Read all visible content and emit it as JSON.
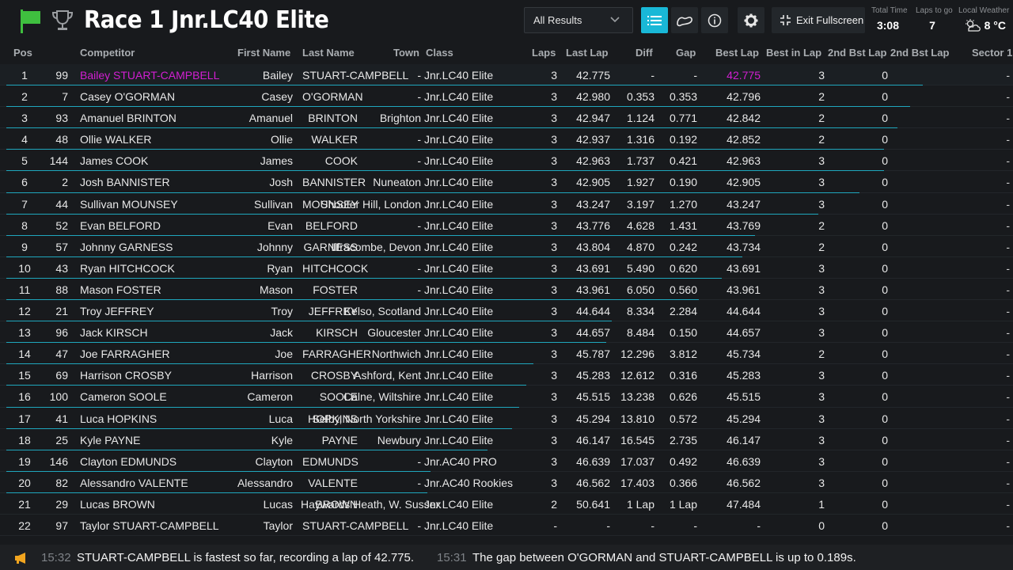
{
  "header": {
    "title": "Race 1 Jnr.LC40 Elite",
    "filter_value": "All Results",
    "exit_label": "Exit Fullscreen",
    "total_time_label": "Total Time",
    "total_time": "3:08",
    "laps_to_go_label": "Laps to go",
    "laps_to_go": "7",
    "weather_label": "Local Weather",
    "weather_temp": "8 °C",
    "accent_color": "#19b8d7",
    "flag_color": "#3fbf3f"
  },
  "columns": {
    "pos": "Pos",
    "competitor": "Competitor",
    "first": "First Name",
    "last": "Last Name",
    "town": "Town",
    "class": "Class",
    "laps": "Laps",
    "last_lap": "Last Lap",
    "diff": "Diff",
    "gap": "Gap",
    "best_lap": "Best Lap",
    "best_in_lap": "Best in Lap",
    "second_best_lap": "2nd Bst Lap",
    "second_in_lap": "2nd Bst Lap",
    "sector": "Sector 1"
  },
  "rows": [
    {
      "pos": "1",
      "num": "99",
      "comp": "Bailey STUART-CAMPBELL",
      "first": "Bailey",
      "last": "STUART-CAMPBELL",
      "town": "-",
      "class": "Jnr.LC40 Elite",
      "laps": "3",
      "last_lap": "42.775",
      "diff": "-",
      "gap": "-",
      "best": "42.775",
      "bil": "3",
      "b2": "0",
      "hl": true,
      "bar": 100
    },
    {
      "pos": "2",
      "num": "7",
      "comp": "Casey O'GORMAN",
      "first": "Casey",
      "last": "O'GORMAN",
      "town": "-",
      "class": "Jnr.LC40 Elite",
      "laps": "3",
      "last_lap": "42.980",
      "diff": "0.353",
      "gap": "0.353",
      "best": "42.796",
      "bil": "2",
      "b2": "0",
      "hl": false,
      "bar": 98.6
    },
    {
      "pos": "3",
      "num": "93",
      "comp": "Amanuel BRINTON",
      "first": "Amanuel",
      "last": "BRINTON",
      "town": "Brighton",
      "class": "Jnr.LC40 Elite",
      "laps": "3",
      "last_lap": "42.947",
      "diff": "1.124",
      "gap": "0.771",
      "best": "42.842",
      "bil": "2",
      "b2": "0",
      "hl": false,
      "bar": 97.2
    },
    {
      "pos": "4",
      "num": "48",
      "comp": "Ollie WALKER",
      "first": "Ollie",
      "last": "WALKER",
      "town": "-",
      "class": "Jnr.LC40 Elite",
      "laps": "3",
      "last_lap": "42.937",
      "diff": "1.316",
      "gap": "0.192",
      "best": "42.852",
      "bil": "2",
      "b2": "0",
      "hl": false,
      "bar": 95.8
    },
    {
      "pos": "5",
      "num": "144",
      "comp": "James COOK",
      "first": "James",
      "last": "COOK",
      "town": "-",
      "class": "Jnr.LC40 Elite",
      "laps": "3",
      "last_lap": "42.963",
      "diff": "1.737",
      "gap": "0.421",
      "best": "42.963",
      "bil": "3",
      "b2": "0",
      "hl": false,
      "bar": 95.8
    },
    {
      "pos": "6",
      "num": "2",
      "comp": "Josh BANNISTER",
      "first": "Josh",
      "last": "BANNISTER",
      "town": "Nuneaton",
      "class": "Jnr.LC40 Elite",
      "laps": "3",
      "last_lap": "42.905",
      "diff": "1.927",
      "gap": "0.190",
      "best": "42.905",
      "bil": "3",
      "b2": "0",
      "hl": false,
      "bar": 93.1
    },
    {
      "pos": "7",
      "num": "44",
      "comp": "Sullivan MOUNSEY",
      "first": "Sullivan",
      "last": "MOUNSEY",
      "town": "Shooter Hill, London",
      "class": "Jnr.LC40 Elite",
      "laps": "3",
      "last_lap": "43.247",
      "diff": "3.197",
      "gap": "1.270",
      "best": "43.247",
      "bil": "3",
      "b2": "0",
      "hl": false,
      "bar": 88.6
    },
    {
      "pos": "8",
      "num": "52",
      "comp": "Evan BELFORD",
      "first": "Evan",
      "last": "BELFORD",
      "town": "-",
      "class": "Jnr.LC40 Elite",
      "laps": "3",
      "last_lap": "43.776",
      "diff": "4.628",
      "gap": "1.431",
      "best": "43.769",
      "bil": "2",
      "b2": "0",
      "hl": false,
      "bar": 81.7
    },
    {
      "pos": "9",
      "num": "57",
      "comp": "Johnny GARNESS",
      "first": "Johnny",
      "last": "GARNESS",
      "town": "Ilfracombe, Devon",
      "class": "Jnr.LC40 Elite",
      "laps": "3",
      "last_lap": "43.804",
      "diff": "4.870",
      "gap": "0.242",
      "best": "43.734",
      "bil": "2",
      "b2": "0",
      "hl": false,
      "bar": 80.3
    },
    {
      "pos": "10",
      "num": "43",
      "comp": "Ryan HITCHCOCK",
      "first": "Ryan",
      "last": "HITCHCOCK",
      "town": "-",
      "class": "Jnr.LC40 Elite",
      "laps": "3",
      "last_lap": "43.691",
      "diff": "5.490",
      "gap": "0.620",
      "best": "43.691",
      "bil": "3",
      "b2": "0",
      "hl": false,
      "bar": 78.1
    },
    {
      "pos": "11",
      "num": "88",
      "comp": "Mason FOSTER",
      "first": "Mason",
      "last": "FOSTER",
      "town": "-",
      "class": "Jnr.LC40 Elite",
      "laps": "3",
      "last_lap": "43.961",
      "diff": "6.050",
      "gap": "0.560",
      "best": "43.961",
      "bil": "3",
      "b2": "0",
      "hl": false,
      "bar": 75.6
    },
    {
      "pos": "12",
      "num": "21",
      "comp": "Troy JEFFREY",
      "first": "Troy",
      "last": "JEFFREY",
      "town": "Kelso, Scotland",
      "class": "Jnr.LC40 Elite",
      "laps": "3",
      "last_lap": "44.644",
      "diff": "8.334",
      "gap": "2.284",
      "best": "44.644",
      "bil": "3",
      "b2": "0",
      "hl": false,
      "bar": 66.1
    },
    {
      "pos": "13",
      "num": "96",
      "comp": "Jack KIRSCH",
      "first": "Jack",
      "last": "KIRSCH",
      "town": "Gloucester",
      "class": "Jnr.LC40 Elite",
      "laps": "3",
      "last_lap": "44.657",
      "diff": "8.484",
      "gap": "0.150",
      "best": "44.657",
      "bil": "3",
      "b2": "0",
      "hl": false,
      "bar": 65.5
    },
    {
      "pos": "14",
      "num": "47",
      "comp": "Joe FARRAGHER",
      "first": "Joe",
      "last": "FARRAGHER",
      "town": "Northwich",
      "class": "Jnr.LC40 Elite",
      "laps": "3",
      "last_lap": "45.787",
      "diff": "12.296",
      "gap": "3.812",
      "best": "45.734",
      "bil": "2",
      "b2": "0",
      "hl": false,
      "bar": 57.5
    },
    {
      "pos": "15",
      "num": "69",
      "comp": "Harrison CROSBY",
      "first": "Harrison",
      "last": "CROSBY",
      "town": "Ashford, Kent",
      "class": "Jnr.LC40 Elite",
      "laps": "3",
      "last_lap": "45.283",
      "diff": "12.612",
      "gap": "0.316",
      "best": "45.283",
      "bil": "3",
      "b2": "0",
      "hl": false,
      "bar": 56.7
    },
    {
      "pos": "16",
      "num": "100",
      "comp": "Cameron SOOLE",
      "first": "Cameron",
      "last": "SOOLE",
      "town": "Calne, Wiltshire",
      "class": "Jnr.LC40 Elite",
      "laps": "3",
      "last_lap": "45.515",
      "diff": "13.238",
      "gap": "0.626",
      "best": "45.515",
      "bil": "3",
      "b2": "0",
      "hl": false,
      "bar": 56.0
    },
    {
      "pos": "17",
      "num": "41",
      "comp": "Luca HOPKINS",
      "first": "Luca",
      "last": "HOPKINS",
      "town": "Selby, North Yorkshire",
      "class": "Jnr.LC40 Elite",
      "laps": "3",
      "last_lap": "45.294",
      "diff": "13.810",
      "gap": "0.572",
      "best": "45.294",
      "bil": "3",
      "b2": "0",
      "hl": false,
      "bar": 55.2
    },
    {
      "pos": "18",
      "num": "25",
      "comp": "Kyle PAYNE",
      "first": "Kyle",
      "last": "PAYNE",
      "town": "Newbury",
      "class": "Jnr.LC40 Elite",
      "laps": "3",
      "last_lap": "46.147",
      "diff": "16.545",
      "gap": "2.735",
      "best": "46.147",
      "bil": "3",
      "b2": "0",
      "hl": false,
      "bar": 52.5
    },
    {
      "pos": "19",
      "num": "146",
      "comp": "Clayton EDMUNDS",
      "first": "Clayton",
      "last": "EDMUNDS",
      "town": "-",
      "class": "Jnr.AC40 PRO",
      "laps": "3",
      "last_lap": "46.639",
      "diff": "17.037",
      "gap": "0.492",
      "best": "46.639",
      "bil": "3",
      "b2": "0",
      "hl": false,
      "bar": 46.3
    },
    {
      "pos": "20",
      "num": "82",
      "comp": "Alessandro VALENTE",
      "first": "Alessandro",
      "last": "VALENTE",
      "town": "-",
      "class": "Jnr.AC40 Rookies",
      "laps": "3",
      "last_lap": "46.562",
      "diff": "17.403",
      "gap": "0.366",
      "best": "46.562",
      "bil": "3",
      "b2": "0",
      "hl": false,
      "bar": 45.9
    },
    {
      "pos": "21",
      "num": "29",
      "comp": "Lucas BROWN",
      "first": "Lucas",
      "last": "BROWN",
      "town": "Haywards Heath, W. Sussex",
      "class": "Jnr.LC40 Elite",
      "laps": "2",
      "last_lap": "50.641",
      "diff": "1 Lap",
      "gap": "1 Lap",
      "best": "47.484",
      "bil": "1",
      "b2": "0",
      "hl": false,
      "bar": 0
    },
    {
      "pos": "22",
      "num": "97",
      "comp": "Taylor STUART-CAMPBELL",
      "first": "Taylor",
      "last": "STUART-CAMPBELL",
      "town": "-",
      "class": "Jnr.LC40 Elite",
      "laps": "-",
      "last_lap": "-",
      "diff": "-",
      "gap": "-",
      "best": "-",
      "bil": "0",
      "b2": "0",
      "hl": false,
      "bar": 0
    }
  ],
  "row_end_dash": "-",
  "ticker": {
    "t1": "15:32",
    "m1": "STUART-CAMPBELL is fastest so far, recording a lap of 42.775.",
    "t2": "15:31",
    "m2": "The gap between O'GORMAN and STUART-CAMPBELL is up to 0.189s."
  }
}
